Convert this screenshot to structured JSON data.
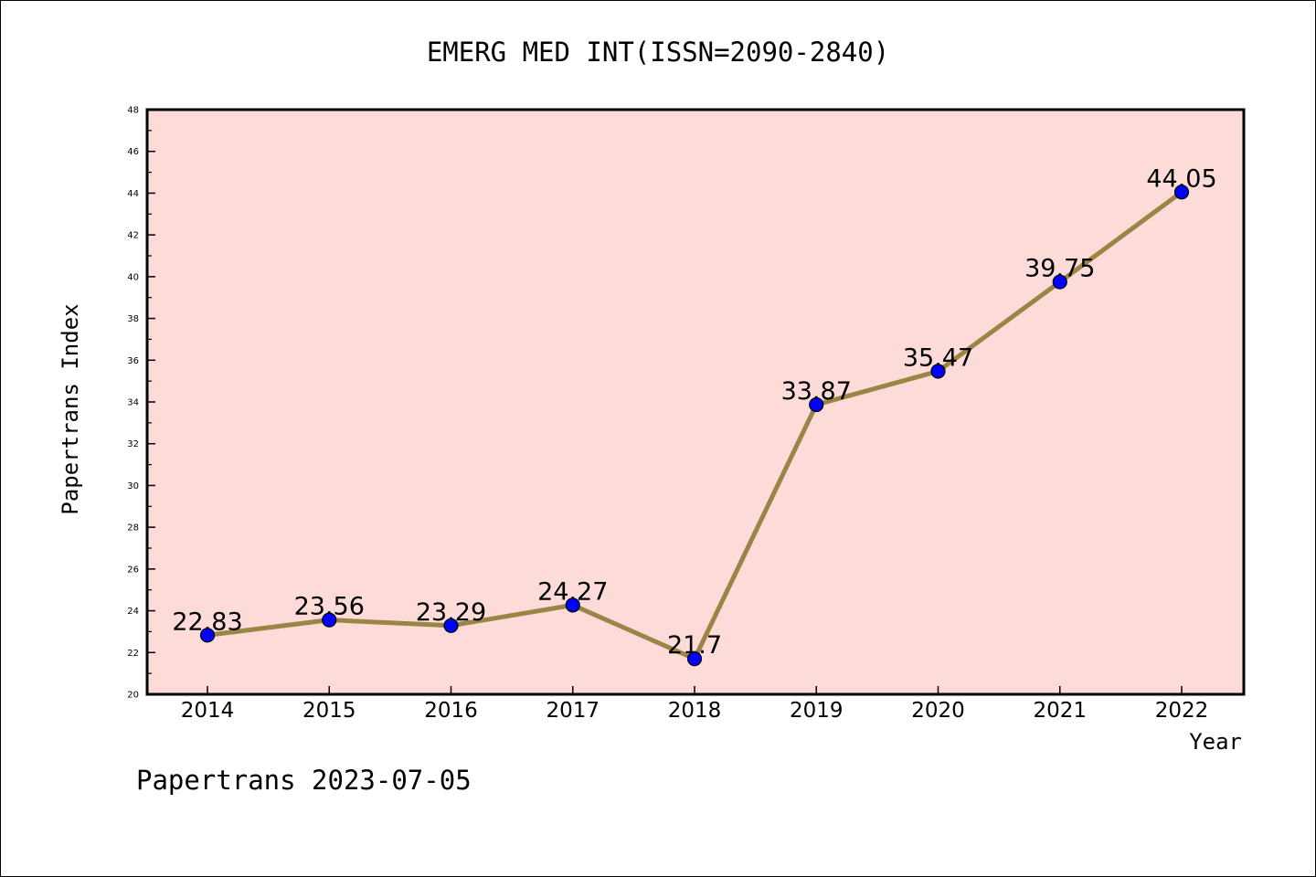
{
  "chart_data": {
    "type": "line",
    "title": "EMERG MED INT(ISSN=2090-2840)",
    "xlabel": "Year",
    "ylabel": "Papertrans Index",
    "categories": [
      "2014",
      "2015",
      "2016",
      "2017",
      "2018",
      "2019",
      "2020",
      "2021",
      "2022"
    ],
    "series": [
      {
        "values": [
          22.83,
          23.56,
          23.29,
          24.27,
          21.7,
          33.87,
          35.47,
          39.75,
          44.05
        ]
      }
    ],
    "data_labels": [
      "22.83",
      "23.56",
      "23.29",
      "24.27",
      "21.7",
      "33.87",
      "35.47",
      "39.75",
      "44.05"
    ],
    "ylim": [
      20,
      48
    ],
    "yticks": [
      20,
      22,
      24,
      26,
      28,
      30,
      32,
      34,
      36,
      38,
      40,
      42,
      44,
      46,
      48
    ],
    "grid": false,
    "legend": "none"
  },
  "footer": "Papertrans 2023-07-05",
  "colors": {
    "plot_background": "#fddbd9",
    "line": "#9b8544",
    "marker": "#0000ff",
    "marker_edge": "#000000",
    "axes": "#000000"
  }
}
